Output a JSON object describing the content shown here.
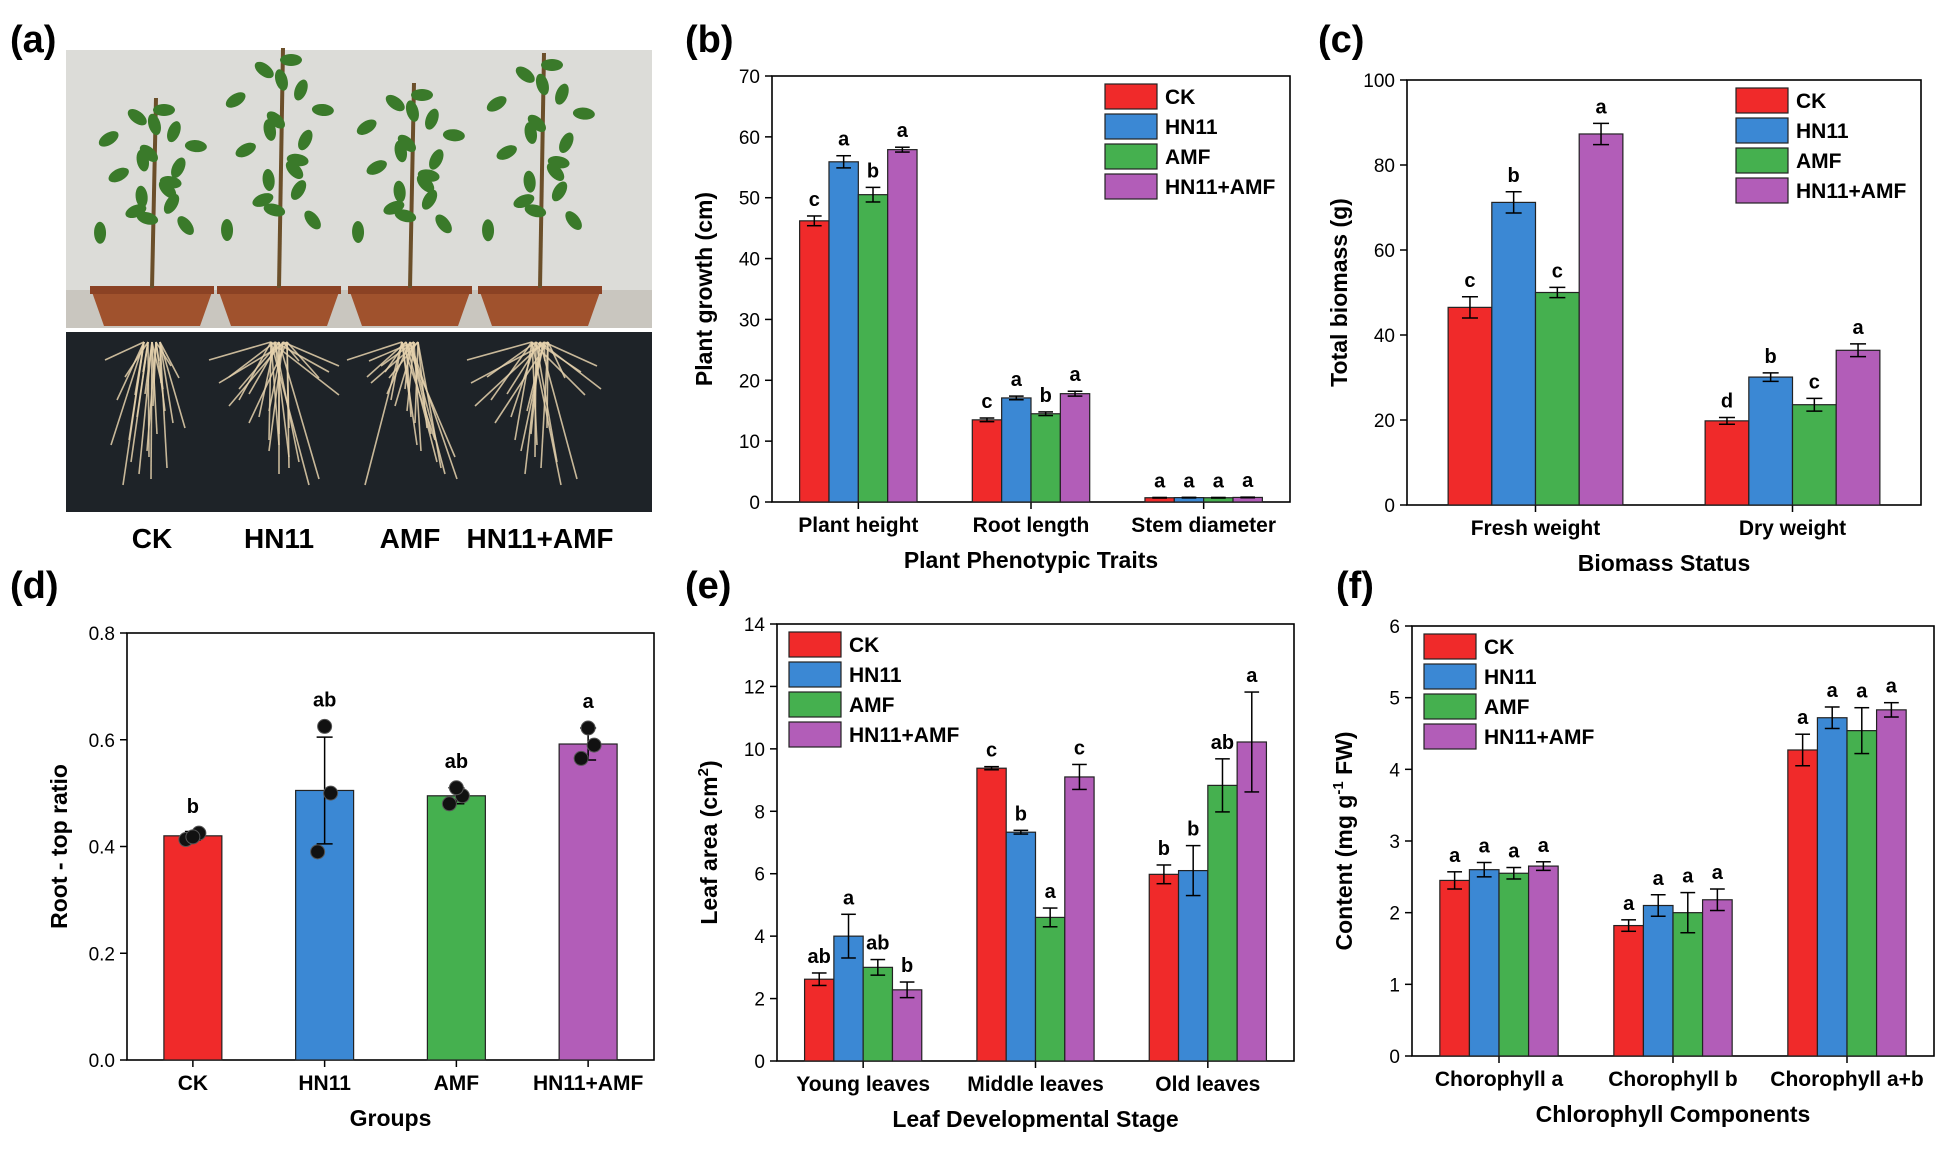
{
  "panel_letters": [
    "(a)",
    "(b)",
    "(c)",
    "(d)",
    "(e)",
    "(f)"
  ],
  "photo_panel": {
    "labels": [
      "CK",
      "HN11",
      "AMF",
      "HN11+AMF"
    ],
    "colors": {
      "wall": "#dcdcd8",
      "pot": "#a0522d",
      "roots_bg": "#1e2328",
      "root": "#e6d2ad",
      "leaf": "#3a7a2a"
    }
  },
  "colors": {
    "CK": "#f02a2a",
    "HN11": "#3b88d4",
    "AMF": "#45b04f",
    "HN11+AMF": "#b25db8"
  },
  "chart_data": [
    {
      "id": "b",
      "type": "bar",
      "series_names": [
        "CK",
        "HN11",
        "AMF",
        "HN11+AMF"
      ],
      "categories": [
        "Plant height",
        "Root length",
        "Stem diameter"
      ],
      "series": [
        {
          "name": "CK",
          "values": [
            46.2,
            13.5,
            0.7
          ],
          "errors": [
            0.8,
            0.3,
            0.05
          ],
          "letters": [
            "c",
            "c",
            "a"
          ]
        },
        {
          "name": "HN11",
          "values": [
            55.9,
            17.1,
            0.72
          ],
          "errors": [
            1.0,
            0.3,
            0.05
          ],
          "letters": [
            "a",
            "a",
            "a"
          ]
        },
        {
          "name": "AMF",
          "values": [
            50.5,
            14.5,
            0.7
          ],
          "errors": [
            1.2,
            0.3,
            0.05
          ],
          "letters": [
            "b",
            "b",
            "a"
          ]
        },
        {
          "name": "HN11+AMF",
          "values": [
            57.9,
            17.8,
            0.75
          ],
          "errors": [
            0.4,
            0.4,
            0.05
          ],
          "letters": [
            "a",
            "a",
            "a"
          ]
        }
      ],
      "xlabel": "Plant Phenotypic Traits",
      "ylabel": "Plant growth (cm)",
      "ylim": [
        0,
        70
      ],
      "yticks": [
        0,
        10,
        20,
        30,
        40,
        50,
        60,
        70
      ],
      "legend": "top-right"
    },
    {
      "id": "c",
      "type": "bar",
      "series_names": [
        "CK",
        "HN11",
        "AMF",
        "HN11+AMF"
      ],
      "categories": [
        "Fresh weight",
        "Dry weight"
      ],
      "series": [
        {
          "name": "CK",
          "values": [
            46.5,
            19.8
          ],
          "errors": [
            2.5,
            0.8
          ],
          "letters": [
            "c",
            "d"
          ]
        },
        {
          "name": "HN11",
          "values": [
            71.2,
            30.1
          ],
          "errors": [
            2.5,
            1.0
          ],
          "letters": [
            "b",
            "b"
          ]
        },
        {
          "name": "AMF",
          "values": [
            50.0,
            23.6
          ],
          "errors": [
            1.2,
            1.5
          ],
          "letters": [
            "c",
            "c"
          ]
        },
        {
          "name": "HN11+AMF",
          "values": [
            87.3,
            36.4
          ],
          "errors": [
            2.5,
            1.5
          ],
          "letters": [
            "a",
            "a"
          ]
        }
      ],
      "xlabel": "Biomass Status",
      "ylabel": "Total biomass (g)",
      "ylim": [
        0,
        100
      ],
      "yticks": [
        0,
        20,
        40,
        60,
        80,
        100
      ],
      "legend": "top-right"
    },
    {
      "id": "d",
      "type": "bar",
      "categories": [
        "CK",
        "HN11",
        "AMF",
        "HN11+AMF"
      ],
      "values": [
        0.42,
        0.505,
        0.495,
        0.592
      ],
      "errors": [
        0.008,
        0.1,
        0.015,
        0.03
      ],
      "letters": [
        "b",
        "ab",
        "ab",
        "a"
      ],
      "points": [
        [
          0.413,
          0.425,
          0.418
        ],
        [
          0.39,
          0.5,
          0.625
        ],
        [
          0.48,
          0.495,
          0.51
        ],
        [
          0.565,
          0.59,
          0.622
        ]
      ],
      "xlabel": "Groups",
      "ylabel": "Root - top ratio",
      "ylim": [
        0,
        0.8
      ],
      "yticks": [
        "0.0",
        "0.2",
        "0.4",
        "0.6",
        "0.8"
      ]
    },
    {
      "id": "e",
      "type": "bar",
      "series_names": [
        "CK",
        "HN11",
        "AMF",
        "HN11+AMF"
      ],
      "categories": [
        "Young leaves",
        "Middle leaves",
        "Old leaves"
      ],
      "series": [
        {
          "name": "CK",
          "values": [
            2.62,
            9.38,
            5.98
          ],
          "errors": [
            0.2,
            0.05,
            0.3
          ],
          "letters": [
            "ab",
            "c",
            "b"
          ]
        },
        {
          "name": "HN11",
          "values": [
            4.0,
            7.33,
            6.1
          ],
          "errors": [
            0.7,
            0.06,
            0.8
          ],
          "letters": [
            "a",
            "b",
            "b"
          ]
        },
        {
          "name": "AMF",
          "values": [
            3.0,
            4.6,
            8.83
          ],
          "errors": [
            0.25,
            0.3,
            0.85
          ],
          "letters": [
            "ab",
            "a",
            "ab"
          ]
        },
        {
          "name": "HN11+AMF",
          "values": [
            2.28,
            9.1,
            10.22
          ],
          "errors": [
            0.25,
            0.4,
            1.6
          ],
          "letters": [
            "b",
            "c",
            "a"
          ]
        }
      ],
      "xlabel": "Leaf Developmental Stage",
      "ylabel_main": "Leaf area (cm",
      "ylabel_sup": "2",
      "ylabel_end": ")",
      "ylim": [
        0,
        14
      ],
      "yticks": [
        0,
        2,
        4,
        6,
        8,
        10,
        12,
        14
      ],
      "legend": "top-left"
    },
    {
      "id": "f",
      "type": "bar",
      "series_names": [
        "CK",
        "HN11",
        "AMF",
        "HN11+AMF"
      ],
      "categories": [
        "Chorophyll a",
        "Chorophyll b",
        "Chorophyll a+b"
      ],
      "series": [
        {
          "name": "CK",
          "values": [
            2.45,
            1.82,
            4.27
          ],
          "errors": [
            0.12,
            0.08,
            0.22
          ],
          "letters": [
            "a",
            "a",
            "a"
          ]
        },
        {
          "name": "HN11",
          "values": [
            2.6,
            2.1,
            4.72
          ],
          "errors": [
            0.1,
            0.15,
            0.15
          ],
          "letters": [
            "a",
            "a",
            "a"
          ]
        },
        {
          "name": "AMF",
          "values": [
            2.55,
            2.0,
            4.54
          ],
          "errors": [
            0.08,
            0.28,
            0.32
          ],
          "letters": [
            "a",
            "a",
            "a"
          ]
        },
        {
          "name": "HN11+AMF",
          "values": [
            2.65,
            2.18,
            4.83
          ],
          "errors": [
            0.06,
            0.15,
            0.1
          ],
          "letters": [
            "a",
            "a",
            "a"
          ]
        }
      ],
      "xlabel": "Chlorophyll Components",
      "ylabel_main": "Content (mg g",
      "ylabel_sup": "-1",
      "ylabel_end": " FW)",
      "ylim": [
        0,
        6
      ],
      "yticks": [
        0,
        1,
        2,
        3,
        4,
        5,
        6
      ],
      "legend": "top-left"
    }
  ]
}
